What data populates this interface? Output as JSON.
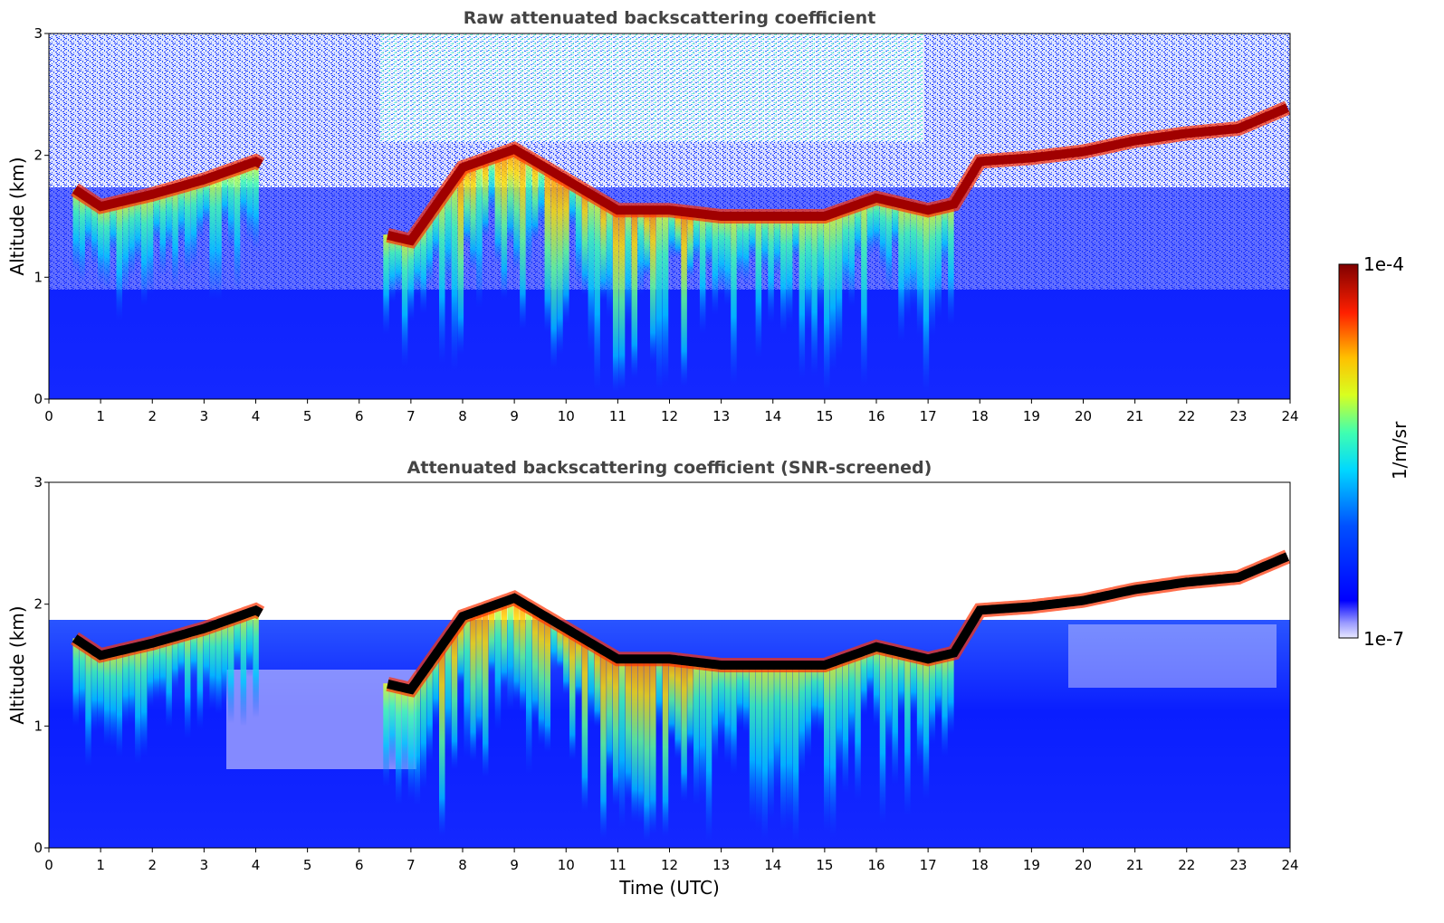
{
  "chart_data": [
    {
      "type": "heatmap",
      "title": "Raw attenuated backscattering coefficient",
      "xlabel": "",
      "ylabel": "Altitude (km)",
      "xlim": [
        0,
        24
      ],
      "ylim": [
        0,
        3
      ],
      "xticks": [
        "0",
        "1",
        "2",
        "3",
        "4",
        "5",
        "6",
        "7",
        "8",
        "9",
        "10",
        "11",
        "12",
        "13",
        "14",
        "15",
        "16",
        "17",
        "18",
        "19",
        "20",
        "21",
        "22",
        "23",
        "24"
      ],
      "yticks": [
        "0",
        "1",
        "2",
        "3"
      ],
      "grid": false,
      "cloud_base_km": {
        "x": [
          0.5,
          1,
          2,
          3,
          4,
          6.5,
          7,
          8,
          9,
          10,
          11,
          12,
          13,
          14,
          15,
          16,
          17,
          17.5,
          18,
          19,
          20,
          21,
          22,
          23,
          24
        ],
        "y": [
          1.72,
          1.58,
          1.68,
          1.8,
          1.95,
          1.35,
          1.3,
          1.9,
          2.05,
          1.8,
          1.55,
          1.55,
          1.5,
          1.5,
          1.5,
          1.65,
          1.55,
          1.6,
          1.95,
          1.98,
          2.03,
          2.12,
          2.18,
          2.22,
          2.4
        ]
      }
    },
    {
      "type": "heatmap",
      "title": "Attenuated backscattering coefficient (SNR-screened)",
      "xlabel": "Time (UTC)",
      "ylabel": "Altitude (km)",
      "xlim": [
        0,
        24
      ],
      "ylim": [
        0,
        3
      ],
      "xticks": [
        "0",
        "1",
        "2",
        "3",
        "4",
        "5",
        "6",
        "7",
        "8",
        "9",
        "10",
        "11",
        "12",
        "13",
        "14",
        "15",
        "16",
        "17",
        "18",
        "19",
        "20",
        "21",
        "22",
        "23",
        "24"
      ],
      "yticks": [
        "0",
        "1",
        "2",
        "3"
      ],
      "grid": false,
      "cloud_base_km": {
        "x": [
          0.5,
          1,
          2,
          3,
          4,
          6.5,
          7,
          8,
          9,
          10,
          11,
          12,
          13,
          14,
          15,
          16,
          17,
          17.5,
          18,
          19,
          20,
          21,
          22,
          23,
          24
        ],
        "y": [
          1.72,
          1.58,
          1.68,
          1.8,
          1.95,
          1.35,
          1.3,
          1.9,
          2.05,
          1.8,
          1.55,
          1.55,
          1.5,
          1.5,
          1.5,
          1.65,
          1.55,
          1.6,
          1.95,
          1.98,
          2.03,
          2.12,
          2.18,
          2.22,
          2.4
        ]
      }
    }
  ],
  "colorbar": {
    "max_label": "1e-4",
    "min_label": "1e-7",
    "unit_label": "1/m/sr",
    "scale": "log",
    "colormap": "jet"
  }
}
